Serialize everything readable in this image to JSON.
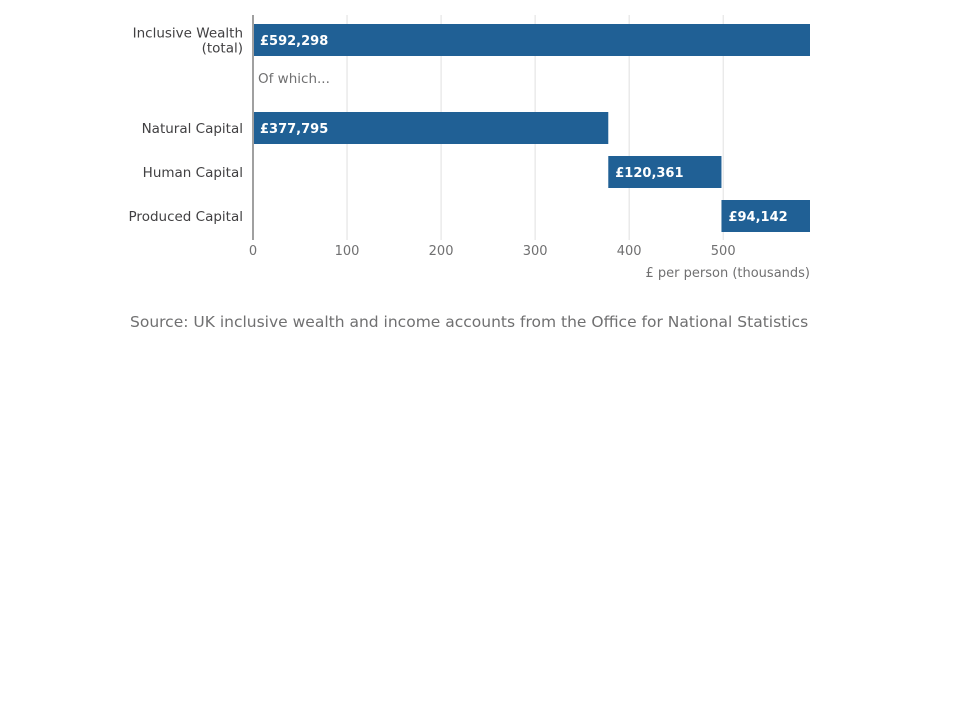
{
  "chart_data": {
    "type": "bar",
    "subtype": "waterfall-horizontal",
    "categories": [
      "Inclusive Wealth (total)",
      "Natural Capital",
      "Human Capital",
      "Produced Capital"
    ],
    "category_lines": [
      [
        "Inclusive Wealth",
        "(total)"
      ],
      [
        "Natural Capital"
      ],
      [
        "Human Capital"
      ],
      [
        "Produced Capital"
      ]
    ],
    "bars": [
      {
        "category": "Inclusive Wealth (total)",
        "start": 0,
        "end": 592.298,
        "value": 592.298,
        "label": "£592,298"
      },
      {
        "category": "Natural Capital",
        "start": 0,
        "end": 377.795,
        "value": 377.795,
        "label": "£377,795"
      },
      {
        "category": "Human Capital",
        "start": 377.795,
        "end": 498.156,
        "value": 120.361,
        "label": "£120,361"
      },
      {
        "category": "Produced Capital",
        "start": 498.156,
        "end": 592.298,
        "value": 94.142,
        "label": "£94,142"
      }
    ],
    "annotation": "Of which...",
    "xlabel": "£ per person (thousands)",
    "ylabel": "",
    "xlim": [
      0,
      592.298
    ],
    "xticks": [
      0,
      100,
      200,
      300,
      400,
      500
    ],
    "grid": true,
    "bar_color": "#206095"
  },
  "source": "Source: UK inclusive wealth and income accounts from the Office for National Statistics"
}
